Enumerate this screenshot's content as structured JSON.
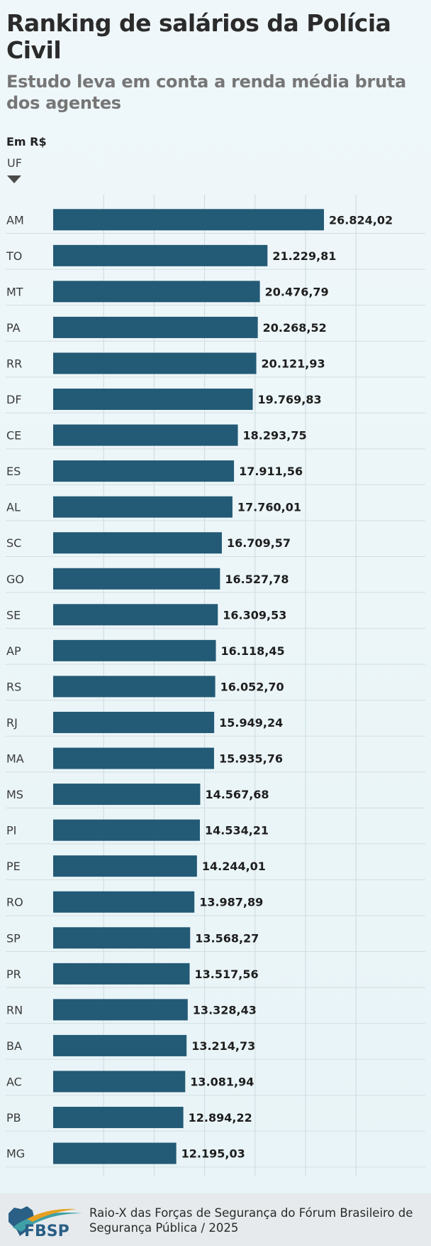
{
  "chart_data": {
    "type": "bar",
    "orientation": "horizontal",
    "title": "Ranking de salários da Polícia Civil",
    "subtitle": "Estudo leva em conta a renda média bruta dos agentes",
    "unit_label": "Em R$",
    "category_axis_label": "UF",
    "categories": [
      "AM",
      "TO",
      "MT",
      "PA",
      "RR",
      "DF",
      "CE",
      "ES",
      "AL",
      "SC",
      "GO",
      "SE",
      "AP",
      "RS",
      "RJ",
      "MA",
      "MS",
      "PI",
      "PE",
      "RO",
      "SP",
      "PR",
      "RN",
      "BA",
      "AC",
      "PB",
      "MG"
    ],
    "values": [
      26824.02,
      21229.81,
      20476.79,
      20268.52,
      20121.93,
      19769.83,
      18293.75,
      17911.56,
      17760.01,
      16709.57,
      16527.78,
      16309.53,
      16118.45,
      16052.7,
      15949.24,
      15935.76,
      14567.68,
      14534.21,
      14244.01,
      13987.89,
      13568.27,
      13517.56,
      13328.43,
      13214.73,
      13081.94,
      12894.22,
      12195.03
    ],
    "value_labels": [
      "26.824,02",
      "21.229,81",
      "20.476,79",
      "20.268,52",
      "20.121,93",
      "19.769,83",
      "18.293,75",
      "17.911,56",
      "17.760,01",
      "16.709,57",
      "16.527,78",
      "16.309,53",
      "16.118,45",
      "16.052,70",
      "15.949,24",
      "15.935,76",
      "14.567,68",
      "14.534,21",
      "14.244,01",
      "13.987,89",
      "13.568,27",
      "13.517,56",
      "13.328,43",
      "13.214,73",
      "13.081,94",
      "12.894,22",
      "12.195,03"
    ],
    "xlim": [
      0,
      30000
    ],
    "grid": true,
    "bar_color": "#235a75"
  },
  "footer": {
    "logo_text": "FBSP",
    "source": "Raio-X das Forças de Segurança do Fórum Brasileiro de Segurança Pública / 2025"
  },
  "colors": {
    "title": "#2b2b2b",
    "subtitle": "#767676",
    "logo_blue": "#2a5f86",
    "logo_teal": "#3fa0a5",
    "logo_orange": "#e6a020"
  }
}
